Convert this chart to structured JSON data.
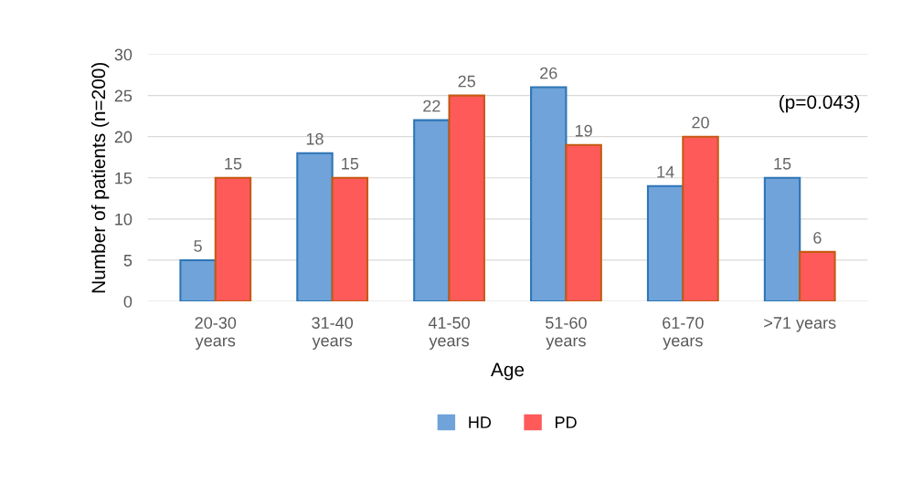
{
  "chart_data": {
    "type": "bar",
    "xlabel": "Age",
    "ylabel": "Number of patients (n=200)",
    "categories": [
      "20-30\nyears",
      "31-40\nyears",
      "41-50\nyears",
      "51-60\nyears",
      "61-70\nyears",
      ">71 years"
    ],
    "series": [
      {
        "name": "HD",
        "color": "#6fa3d9",
        "values": [
          5,
          18,
          22,
          26,
          14,
          15
        ]
      },
      {
        "name": "PD",
        "color": "#ff5a5a",
        "values": [
          15,
          15,
          25,
          19,
          20,
          6
        ]
      }
    ],
    "ylim": [
      0,
      30
    ],
    "yticks": [
      0,
      5,
      10,
      15,
      20,
      25,
      30
    ],
    "grid": "y",
    "legend": "bottom",
    "data_labels": true,
    "annotations": [
      "(p=0.043)"
    ]
  }
}
